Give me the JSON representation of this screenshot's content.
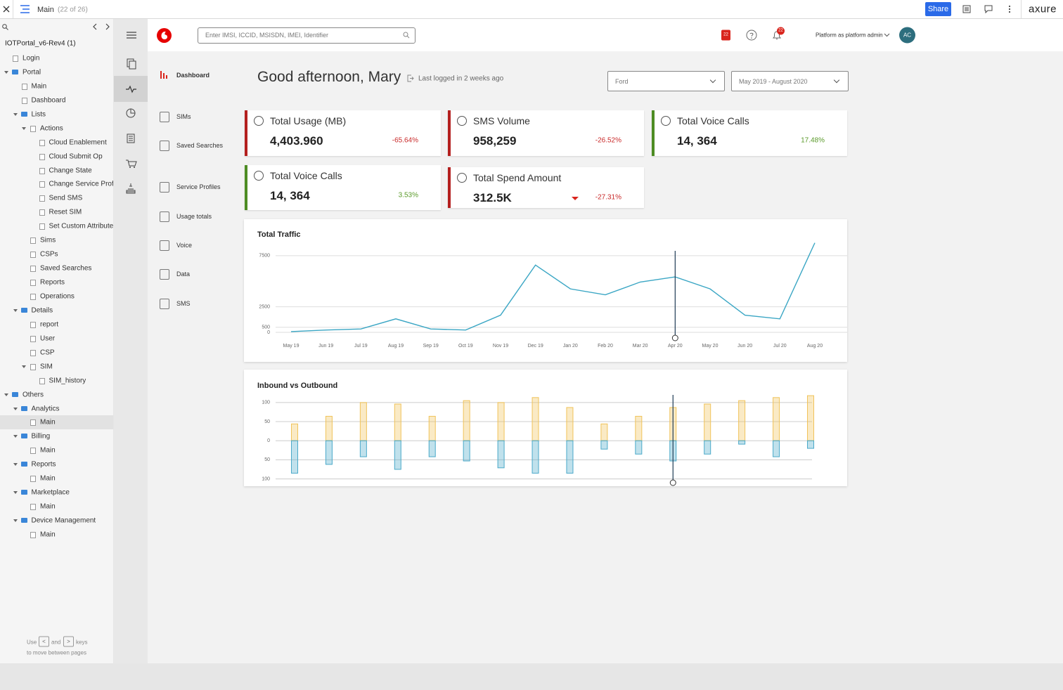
{
  "toolbar": {
    "page": "Main",
    "count": "(22 of 26)",
    "share": "Share",
    "brand": "axure"
  },
  "sitemap": {
    "project": "IOTPortal_v6-Rev4 (1)",
    "items": [
      {
        "label": "Login",
        "level": 0,
        "kind": "page"
      },
      {
        "label": "Portal",
        "level": 0,
        "kind": "folder"
      },
      {
        "label": "Main",
        "level": 1,
        "kind": "page"
      },
      {
        "label": "Dashboard",
        "level": 1,
        "kind": "page"
      },
      {
        "label": "Lists",
        "level": 1,
        "kind": "folder"
      },
      {
        "label": "Actions",
        "level": 2,
        "kind": "pagegroup"
      },
      {
        "label": "Cloud Enablement",
        "level": 3,
        "kind": "page"
      },
      {
        "label": "Cloud Submit Op",
        "level": 3,
        "kind": "page"
      },
      {
        "label": "Change State",
        "level": 3,
        "kind": "page"
      },
      {
        "label": "Change Service Profil",
        "level": 3,
        "kind": "page"
      },
      {
        "label": "Send SMS",
        "level": 3,
        "kind": "page"
      },
      {
        "label": "Reset SIM",
        "level": 3,
        "kind": "page"
      },
      {
        "label": "Set Custom Attributes",
        "level": 3,
        "kind": "page"
      },
      {
        "label": "Sims",
        "level": 2,
        "kind": "page"
      },
      {
        "label": "CSPs",
        "level": 2,
        "kind": "page"
      },
      {
        "label": "Saved Searches",
        "level": 2,
        "kind": "page"
      },
      {
        "label": "Reports",
        "level": 2,
        "kind": "page"
      },
      {
        "label": "Operations",
        "level": 2,
        "kind": "page"
      },
      {
        "label": "Details",
        "level": 1,
        "kind": "folder"
      },
      {
        "label": "report",
        "level": 2,
        "kind": "page"
      },
      {
        "label": "User",
        "level": 2,
        "kind": "page"
      },
      {
        "label": "CSP",
        "level": 2,
        "kind": "page"
      },
      {
        "label": "SIM",
        "level": 2,
        "kind": "pagegroup"
      },
      {
        "label": "SIM_history",
        "level": 3,
        "kind": "page"
      },
      {
        "label": "Others",
        "level": 0,
        "kind": "folder"
      },
      {
        "label": "Analytics",
        "level": 1,
        "kind": "folder"
      },
      {
        "label": "Main",
        "level": 2,
        "kind": "page",
        "selected": true
      },
      {
        "label": "Billing",
        "level": 1,
        "kind": "folder"
      },
      {
        "label": "Main",
        "level": 2,
        "kind": "page"
      },
      {
        "label": "Reports",
        "level": 1,
        "kind": "folder"
      },
      {
        "label": "Main",
        "level": 2,
        "kind": "page"
      },
      {
        "label": "Marketplace",
        "level": 1,
        "kind": "folder"
      },
      {
        "label": "Main",
        "level": 2,
        "kind": "page"
      },
      {
        "label": "Device Management",
        "level": 1,
        "kind": "folder"
      },
      {
        "label": "Main",
        "level": 2,
        "kind": "page"
      }
    ],
    "hint": {
      "use": "Use",
      "prev_key": "<",
      "and": "and",
      "next_key": ">",
      "keys": "keys",
      "line2": "to move between pages"
    }
  },
  "header": {
    "search_placeholder": "Enter IMSI, ICCID, MSISDN, IMEI, Identifier",
    "badge": "22",
    "notifications": "22",
    "user": "Platform as platform admin",
    "avatar": "AC"
  },
  "nav": [
    "Dashboard",
    "SIMs",
    "Saved Searches",
    "Service Profiles",
    "Usage totals",
    "Voice",
    "Data",
    "SMS"
  ],
  "greeting": "Good afternoon, Mary",
  "last_login": "Last logged in 2 weeks ago",
  "filters": [
    "Ford",
    "May 2019 - August 2020"
  ],
  "cards": [
    {
      "title": "Total Usage (MB)",
      "value": "4,403.960",
      "change": "-65.64%",
      "trend": "down"
    },
    {
      "title": "SMS Volume",
      "value": "958,259",
      "change": "-26.52%",
      "trend": "down"
    },
    {
      "title": "Total Voice Calls",
      "value": "14, 364",
      "change": "17.48%",
      "trend": "up"
    },
    {
      "title": "Total Voice Calls",
      "value": "14, 364",
      "change": "3.53%",
      "trend": "up"
    },
    {
      "title": "Total Spend Amount",
      "value": "312.5K",
      "change": "-27.31%",
      "trend": "down",
      "arrow": true
    }
  ],
  "chart_data": [
    {
      "type": "line",
      "title": "Total Traffic",
      "categories": [
        "May 19",
        "Jun 19",
        "Jul 19",
        "Aug 19",
        "Sep 19",
        "Oct 19",
        "Nov 19",
        "Dec 19",
        "Jan 20",
        "Feb 20",
        "Mar 20",
        "Apr 20",
        "May 20",
        "Jun 20",
        "Jul 20",
        "Aug 20"
      ],
      "values": [
        70,
        230,
        330,
        1320,
        330,
        230,
        1680,
        6580,
        4250,
        3670,
        4920,
        5420,
        4250,
        1680,
        1320,
        8750
      ],
      "color": "#3aa6c4",
      "ylim": [
        0,
        9000
      ],
      "yticks": [
        0,
        500,
        2500,
        7500
      ],
      "grid": true
    },
    {
      "type": "bar",
      "title": "Inbound vs Outbound",
      "stacked": true,
      "categories": [
        null,
        null,
        null,
        null,
        null,
        null,
        null,
        null,
        null,
        null,
        null,
        null,
        null,
        null,
        null,
        null
      ],
      "series": [
        {
          "color": "#f0c35a",
          "values": [
            44,
            64,
            100,
            96,
            64,
            105,
            100,
            113,
            87,
            44,
            64,
            87,
            96,
            105,
            113,
            118
          ]
        },
        {
          "color": "#4aa9c9",
          "values": [
            -85,
            -62,
            -42,
            -75,
            -42,
            -53,
            -71,
            -85,
            -85,
            -22,
            -35,
            -53,
            -35,
            -9,
            -42,
            -20
          ]
        }
      ],
      "ylim": [
        -110,
        120
      ],
      "yticks": [
        {
          "value": -100,
          "label": "100"
        },
        {
          "value": -50,
          "label": "50"
        },
        0,
        50,
        100
      ],
      "grid": true
    }
  ]
}
